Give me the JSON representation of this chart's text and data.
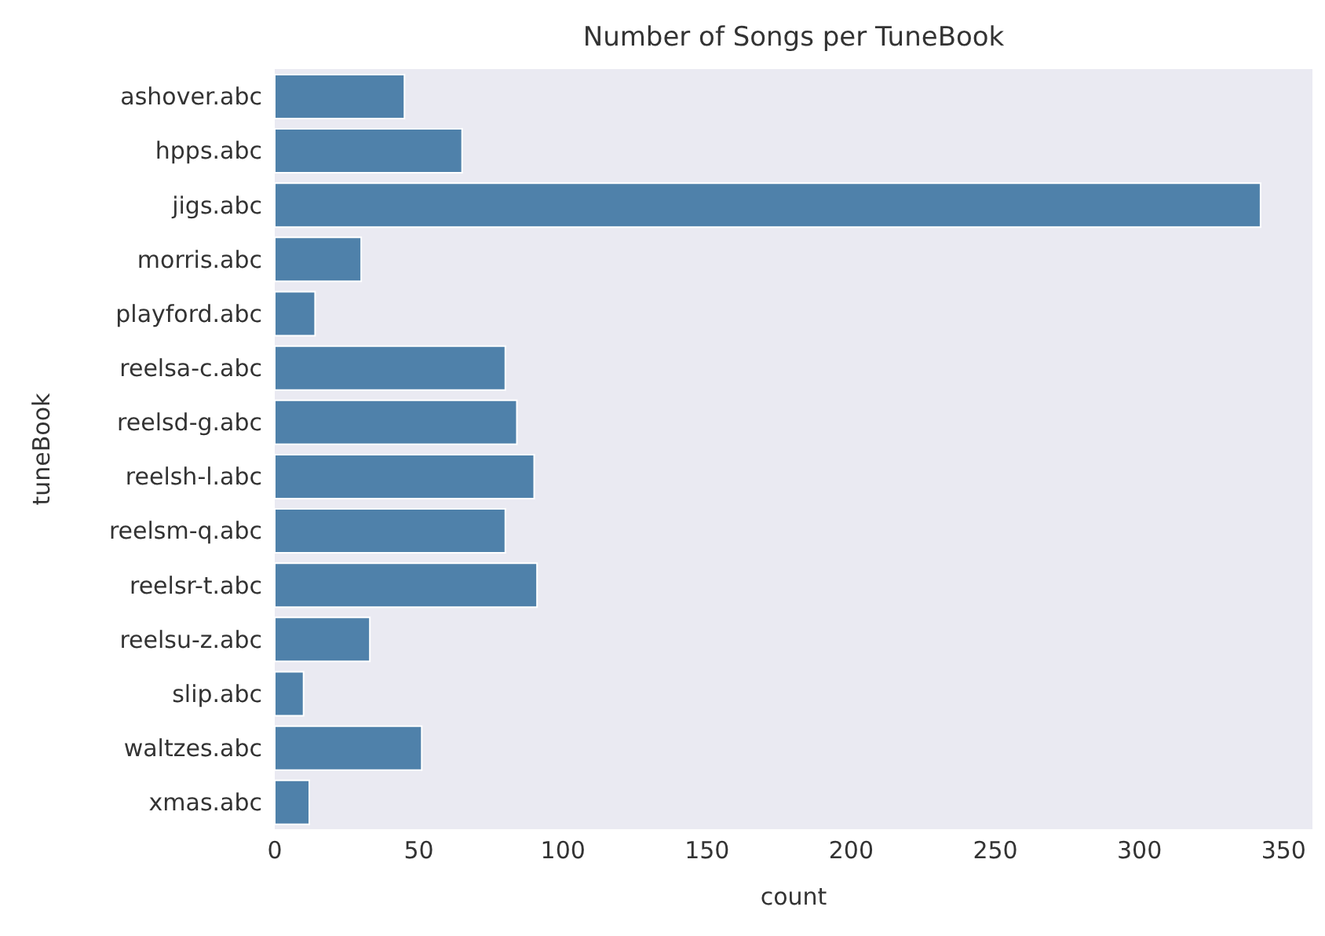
{
  "chart_data": {
    "type": "bar",
    "orientation": "horizontal",
    "title": "Number of Songs per TuneBook",
    "xlabel": "count",
    "ylabel": "tuneBook",
    "categories": [
      "ashover.abc",
      "hpps.abc",
      "jigs.abc",
      "morris.abc",
      "playford.abc",
      "reelsa-c.abc",
      "reelsd-g.abc",
      "reelsh-l.abc",
      "reelsm-q.abc",
      "reelsr-t.abc",
      "reelsu-z.abc",
      "slip.abc",
      "waltzes.abc",
      "xmas.abc"
    ],
    "values": [
      45,
      65,
      342,
      30,
      14,
      80,
      84,
      90,
      80,
      91,
      33,
      10,
      51,
      12
    ],
    "color": "#4f81aa",
    "xlim": [
      0,
      360
    ],
    "xticks": [
      0,
      50,
      100,
      150,
      200,
      250,
      300,
      350
    ],
    "grid": false
  }
}
